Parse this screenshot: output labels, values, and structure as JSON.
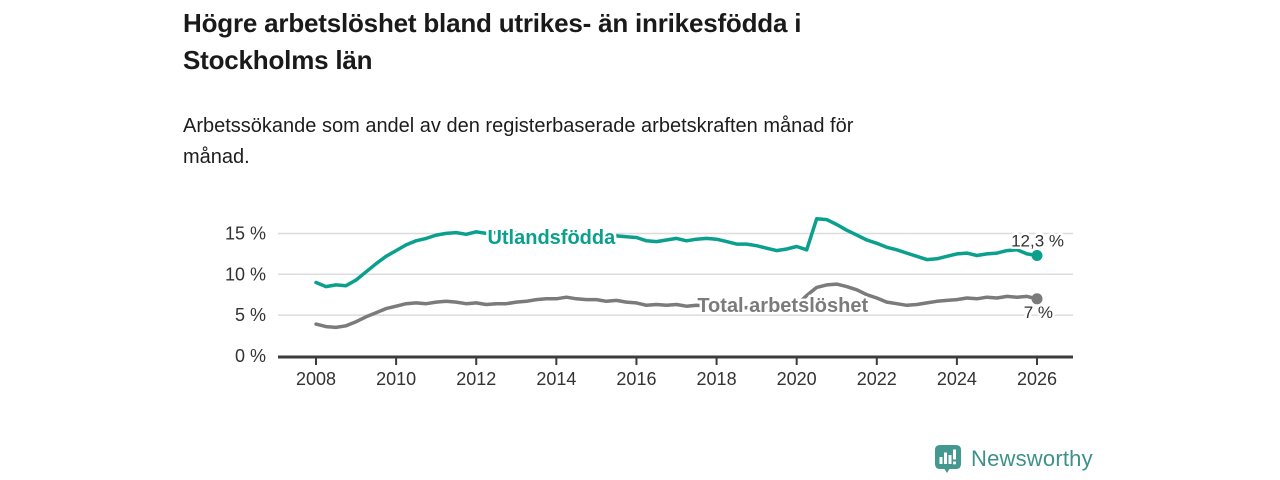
{
  "header": {
    "title": "Högre arbetslöshet bland utrikes- än inrikesfödda i Stockholms län",
    "title_lines": [
      "Högre arbetslöshet bland utrikes- än inrikesfödda i",
      "Stockholms län"
    ],
    "subtitle": "Arbetssökande som andel av den registerbaserade arbetskraften månad för månad.",
    "subtitle_lines": [
      "Arbetssökande som andel av den registerbaserade arbetskraften månad för",
      "månad."
    ]
  },
  "footer": {
    "brand": "Newsworthy",
    "logo_icon": "bar-chart-speech-bubble-icon"
  },
  "colors": {
    "series_utlandsfodda": "#0aa08d",
    "series_total": "#7b7b7b",
    "axis": "#3c3c3c",
    "grid": "#dcdcdc",
    "tick_text": "#333333",
    "value_label_text": "#333333",
    "logo_teal": "#459890",
    "brand_text": "#3e918b",
    "background": "#ffffff"
  },
  "chart_data": {
    "type": "line",
    "title": "Högre arbetslöshet bland utrikes- än inrikesfödda i Stockholms län",
    "xlabel": "",
    "ylabel": "",
    "x_unit": "year (monthly series shown, sampled quarterly)",
    "x_start": 2008,
    "x_step": 0.25,
    "xlim": [
      2007.05,
      2026.9
    ],
    "ylim": [
      0,
      17.5
    ],
    "grid": "horizontal",
    "x_ticks": [
      2008,
      2010,
      2012,
      2014,
      2016,
      2018,
      2020,
      2022,
      2024,
      2026
    ],
    "x_tick_labels": [
      "2008",
      "2010",
      "2012",
      "2014",
      "2016",
      "2018",
      "2020",
      "2022",
      "2024",
      "2026"
    ],
    "y_ticks": [
      0,
      5,
      10,
      15
    ],
    "y_tick_labels": [
      "0 %",
      "5 %",
      "10 %",
      "15 %"
    ],
    "series": [
      {
        "name": "Utlandsfödda",
        "color": "#0aa08d",
        "end_label": "12,3 %",
        "end_value": 12.3,
        "end_label_side": "above",
        "label_x": 2012.28,
        "label_y": 14.55,
        "values": [
          9.0,
          8.5,
          8.7,
          8.6,
          9.3,
          10.3,
          11.3,
          12.2,
          12.9,
          13.6,
          14.1,
          14.4,
          14.8,
          15.0,
          15.1,
          14.9,
          15.2,
          15.0,
          15.1,
          15.0,
          15.1,
          15.0,
          14.9,
          15.0,
          14.9,
          14.8,
          14.9,
          14.7,
          14.8,
          14.6,
          14.7,
          14.6,
          14.5,
          14.1,
          14.0,
          14.2,
          14.4,
          14.1,
          14.3,
          14.4,
          14.3,
          14.0,
          13.7,
          13.7,
          13.5,
          13.2,
          12.9,
          13.1,
          13.4,
          13.0,
          16.8,
          16.7,
          16.1,
          15.4,
          14.8,
          14.2,
          13.8,
          13.3,
          13.0,
          12.6,
          12.2,
          11.8,
          11.9,
          12.2,
          12.5,
          12.6,
          12.3,
          12.5,
          12.6,
          12.9,
          13.0,
          12.5,
          12.3
        ]
      },
      {
        "name": "Total arbetslöshet",
        "color": "#7b7b7b",
        "end_label": "7 %",
        "end_value": 7.0,
        "end_label_side": "below",
        "label_x": 2017.52,
        "label_y": 6.25,
        "values": [
          3.9,
          3.6,
          3.5,
          3.7,
          4.2,
          4.8,
          5.3,
          5.8,
          6.1,
          6.4,
          6.5,
          6.4,
          6.6,
          6.7,
          6.6,
          6.4,
          6.5,
          6.3,
          6.4,
          6.4,
          6.6,
          6.7,
          6.9,
          7.0,
          7.0,
          7.2,
          7.0,
          6.9,
          6.9,
          6.7,
          6.8,
          6.6,
          6.5,
          6.2,
          6.3,
          6.2,
          6.3,
          6.1,
          6.2,
          6.1,
          6.1,
          5.9,
          6.0,
          5.9,
          6.0,
          5.9,
          6.1,
          6.0,
          6.2,
          7.4,
          8.4,
          8.7,
          8.8,
          8.5,
          8.1,
          7.5,
          7.1,
          6.6,
          6.4,
          6.2,
          6.3,
          6.5,
          6.7,
          6.8,
          6.9,
          7.1,
          7.0,
          7.2,
          7.1,
          7.3,
          7.2,
          7.3,
          7.0
        ]
      }
    ]
  }
}
